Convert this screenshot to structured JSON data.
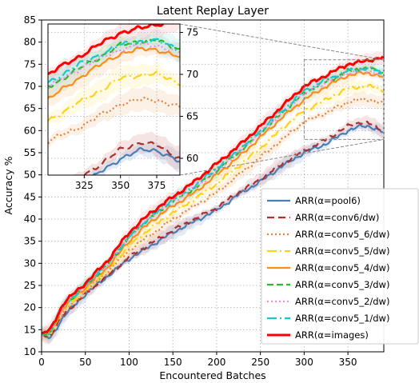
{
  "chart_data": {
    "type": "line",
    "title": "Latent Replay Layer",
    "xlabel": "Encountered Batches",
    "ylabel": "Accuracy %",
    "xlim": [
      0,
      391
    ],
    "ylim": [
      10,
      85
    ],
    "xticks": [
      0,
      50,
      100,
      150,
      200,
      250,
      300,
      350
    ],
    "yticks": [
      10,
      15,
      20,
      25,
      30,
      35,
      40,
      45,
      50,
      55,
      60,
      65,
      70,
      75,
      80,
      85
    ],
    "grid": true,
    "legend_position": "lower-right",
    "series": [
      {
        "name": "ARR(α=pool6)",
        "color": "#4a7fb5",
        "dash": "",
        "band": "#7fa6d4",
        "points": [
          [
            0,
            14
          ],
          [
            10,
            13
          ],
          [
            25,
            18
          ],
          [
            50,
            23
          ],
          [
            75,
            27
          ],
          [
            100,
            31
          ],
          [
            125,
            34
          ],
          [
            150,
            37
          ],
          [
            175,
            39.5
          ],
          [
            200,
            42
          ],
          [
            225,
            45.5
          ],
          [
            250,
            48.5
          ],
          [
            275,
            52
          ],
          [
            300,
            55
          ],
          [
            325,
            57
          ],
          [
            350,
            60
          ],
          [
            365,
            61
          ],
          [
            375,
            61
          ],
          [
            391,
            59.5
          ]
        ]
      },
      {
        "name": "ARR(α=conv6/dw)",
        "color": "#a83232",
        "dash": "9 5",
        "band": "#d48585",
        "points": [
          [
            0,
            14
          ],
          [
            10,
            13.5
          ],
          [
            25,
            18.5
          ],
          [
            50,
            23
          ],
          [
            75,
            27
          ],
          [
            100,
            31.5
          ],
          [
            125,
            34.5
          ],
          [
            150,
            37.5
          ],
          [
            175,
            40
          ],
          [
            200,
            42.5
          ],
          [
            225,
            46
          ],
          [
            250,
            49
          ],
          [
            275,
            52.5
          ],
          [
            300,
            55.5
          ],
          [
            325,
            58
          ],
          [
            350,
            61
          ],
          [
            365,
            62
          ],
          [
            375,
            61.5
          ],
          [
            391,
            60
          ]
        ]
      },
      {
        "name": "ARR(α=conv5_6/dw)",
        "color": "#e8833a",
        "dash": "2 3",
        "band": "#f3c08f",
        "points": [
          [
            0,
            14
          ],
          [
            10,
            14
          ],
          [
            25,
            19
          ],
          [
            50,
            23.5
          ],
          [
            75,
            28
          ],
          [
            100,
            33
          ],
          [
            125,
            36.5
          ],
          [
            150,
            40
          ],
          [
            175,
            43
          ],
          [
            200,
            46
          ],
          [
            225,
            50
          ],
          [
            250,
            54
          ],
          [
            275,
            58
          ],
          [
            300,
            62
          ],
          [
            325,
            64
          ],
          [
            350,
            66.5
          ],
          [
            365,
            67
          ],
          [
            375,
            67
          ],
          [
            391,
            66
          ]
        ]
      },
      {
        "name": "ARR(α=conv5_5/dw)",
        "color": "#ffd11a",
        "dash": "12 4 2 4",
        "band": "#ffe680",
        "points": [
          [
            0,
            14
          ],
          [
            10,
            14
          ],
          [
            25,
            19.5
          ],
          [
            50,
            24
          ],
          [
            75,
            28.5
          ],
          [
            100,
            34
          ],
          [
            125,
            38
          ],
          [
            150,
            41.5
          ],
          [
            175,
            44.5
          ],
          [
            200,
            48
          ],
          [
            225,
            52
          ],
          [
            250,
            56
          ],
          [
            275,
            60.5
          ],
          [
            300,
            64.5
          ],
          [
            325,
            67
          ],
          [
            350,
            69.5
          ],
          [
            365,
            70
          ],
          [
            375,
            70
          ],
          [
            391,
            69
          ]
        ]
      },
      {
        "name": "ARR(α=conv5_4/dw)",
        "color": "#ff8c1a",
        "dash": "",
        "band": "#ffc280",
        "points": [
          [
            0,
            14
          ],
          [
            10,
            14.5
          ],
          [
            25,
            20
          ],
          [
            50,
            24.5
          ],
          [
            75,
            29
          ],
          [
            100,
            35
          ],
          [
            125,
            39.5
          ],
          [
            150,
            43
          ],
          [
            175,
            46
          ],
          [
            200,
            50
          ],
          [
            225,
            54
          ],
          [
            250,
            58.5
          ],
          [
            275,
            63
          ],
          [
            300,
            67
          ],
          [
            325,
            70
          ],
          [
            350,
            72.5
          ],
          [
            365,
            73
          ],
          [
            375,
            73
          ],
          [
            391,
            72
          ]
        ]
      },
      {
        "name": "ARR(α=conv5_3/dw)",
        "color": "#2db82d",
        "dash": "8 4",
        "band": "#8fdc8f",
        "points": [
          [
            0,
            14
          ],
          [
            10,
            14.5
          ],
          [
            25,
            20.5
          ],
          [
            50,
            25
          ],
          [
            75,
            29.5
          ],
          [
            100,
            36
          ],
          [
            125,
            40.5
          ],
          [
            150,
            44
          ],
          [
            175,
            47
          ],
          [
            200,
            51
          ],
          [
            225,
            55
          ],
          [
            250,
            59.5
          ],
          [
            275,
            64
          ],
          [
            300,
            68.5
          ],
          [
            325,
            71
          ],
          [
            350,
            73.5
          ],
          [
            365,
            74
          ],
          [
            375,
            74
          ],
          [
            391,
            73
          ]
        ]
      },
      {
        "name": "ARR(α=conv5_2/dw)",
        "color": "#e890e8",
        "dash": "2 3",
        "band": "#f3c8f3",
        "points": [
          [
            0,
            14
          ],
          [
            10,
            14.5
          ],
          [
            25,
            20.5
          ],
          [
            50,
            25
          ],
          [
            75,
            29.5
          ],
          [
            100,
            36
          ],
          [
            125,
            40.5
          ],
          [
            150,
            44
          ],
          [
            175,
            47
          ],
          [
            200,
            51
          ],
          [
            225,
            55
          ],
          [
            250,
            59.5
          ],
          [
            275,
            64
          ],
          [
            300,
            68.5
          ],
          [
            325,
            71
          ],
          [
            350,
            73
          ],
          [
            365,
            73.5
          ],
          [
            375,
            73.5
          ],
          [
            391,
            72.5
          ]
        ]
      },
      {
        "name": "ARR(α=conv5_1/dw)",
        "color": "#1ac8c8",
        "dash": "12 4 2 4",
        "band": "#8fe3e3",
        "points": [
          [
            0,
            14
          ],
          [
            10,
            14.5
          ],
          [
            25,
            20.5
          ],
          [
            50,
            25
          ],
          [
            75,
            30
          ],
          [
            100,
            36
          ],
          [
            125,
            40.5
          ],
          [
            150,
            44.5
          ],
          [
            175,
            47.5
          ],
          [
            200,
            51.5
          ],
          [
            225,
            55.5
          ],
          [
            250,
            60
          ],
          [
            275,
            64.5
          ],
          [
            300,
            69
          ],
          [
            325,
            71.5
          ],
          [
            350,
            73.5
          ],
          [
            365,
            74
          ],
          [
            375,
            74
          ],
          [
            391,
            73
          ]
        ]
      },
      {
        "name": "ARR(α=images)",
        "color": "#ff0000",
        "dash": "",
        "band": "#ff9a9a",
        "points": [
          [
            0,
            14
          ],
          [
            10,
            15
          ],
          [
            25,
            21
          ],
          [
            50,
            25.5
          ],
          [
            75,
            30.5
          ],
          [
            100,
            37
          ],
          [
            125,
            41.5
          ],
          [
            150,
            45
          ],
          [
            175,
            48.5
          ],
          [
            200,
            52.5
          ],
          [
            225,
            56.5
          ],
          [
            250,
            61
          ],
          [
            275,
            65.5
          ],
          [
            300,
            70
          ],
          [
            325,
            72.5
          ],
          [
            350,
            75
          ],
          [
            365,
            75.5
          ],
          [
            375,
            76
          ],
          [
            391,
            76.5
          ]
        ]
      }
    ],
    "inset": {
      "xlim": [
        300,
        391
      ],
      "ylim": [
        58,
        76
      ],
      "xticks": [
        325,
        350,
        375
      ],
      "yticks": [
        60,
        65,
        70,
        75
      ]
    }
  }
}
